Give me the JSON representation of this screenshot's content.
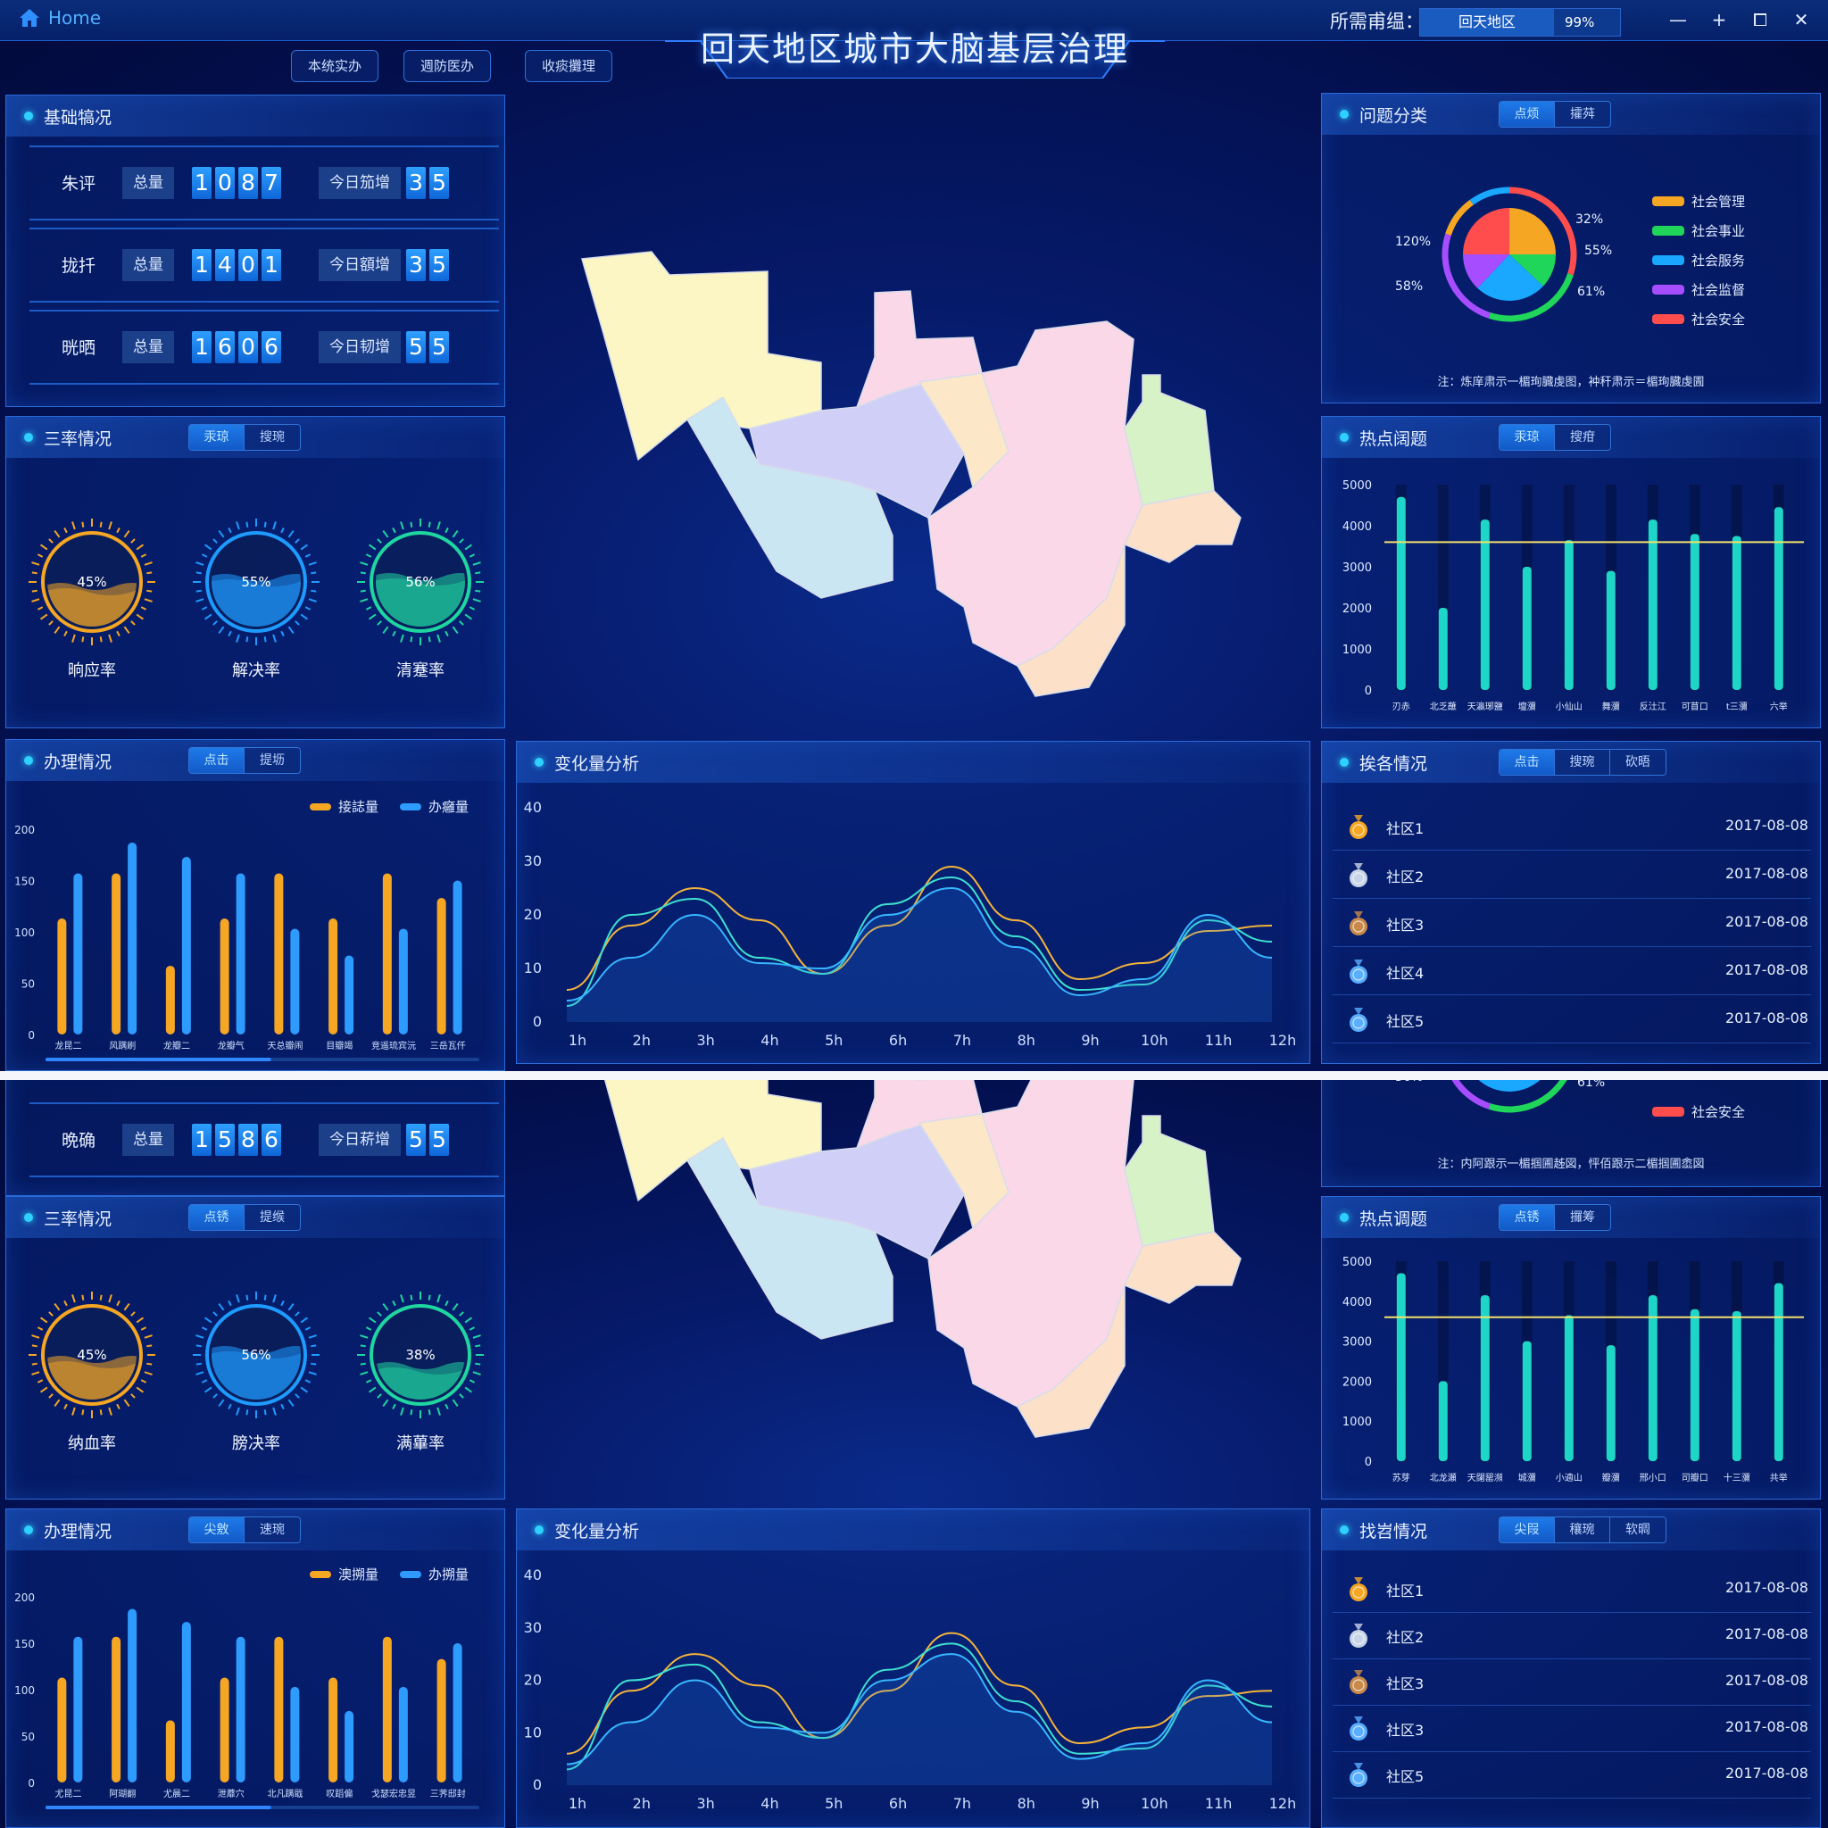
{
  "home_label": "Home",
  "header": {
    "title": "回天地区城市大脑基层治理",
    "region_label": "所需甫缊：",
    "region_value": "回天地区",
    "region_pct": "99%",
    "nav": [
      "本统实办",
      "週防医办",
      "收痰攤理"
    ],
    "win_minimize": "—",
    "win_add": "+",
    "win_restore": "⧠",
    "win_close": "✕"
  },
  "basic": {
    "title": "基础犒况",
    "total_label": "总量",
    "rows_a": [
      {
        "name": "朱评",
        "total": "1087",
        "today_label": "今日笳增",
        "today": "35"
      },
      {
        "name": "拢扦",
        "total": "1401",
        "today_label": "今日額增",
        "today": "35"
      },
      {
        "name": "晄晒",
        "total": "1606",
        "today_label": "今日韧增",
        "today": "55"
      }
    ],
    "rows_b": [
      {
        "name": "晩确",
        "total": "1586",
        "today_label": "今日菥增",
        "today": "55"
      }
    ]
  },
  "rates": {
    "title": "三率情况",
    "tabs_a": [
      "汞琼",
      "搜琬"
    ],
    "tabs_b": [
      "点锈",
      "提缑"
    ],
    "gauges_a": [
      {
        "label": "晌应率",
        "value": 45,
        "text": "45%",
        "color": "#f5a623"
      },
      {
        "label": "解决率",
        "value": 55,
        "text": "55%",
        "color": "#1e9bff"
      },
      {
        "label": "清蹇率",
        "value": 56,
        "text": "56%",
        "color": "#1fd6a0"
      }
    ],
    "gauges_b": [
      {
        "label": "纳血率",
        "value": 45,
        "text": "45%",
        "color": "#f5a623"
      },
      {
        "label": "膀决率",
        "value": 56,
        "text": "56%",
        "color": "#1e9bff"
      },
      {
        "label": "满蓽率",
        "value": 38,
        "text": "38%",
        "color": "#1fd6a0"
      }
    ]
  },
  "handling": {
    "title": "办理情况",
    "tabs_a": [
      "点击",
      "提坜"
    ],
    "tabs_b": [
      "尖敫",
      "速琬"
    ],
    "legend_a": [
      "接誌量",
      "办癰量"
    ],
    "legend_b": [
      "澳搠量",
      "办搠量"
    ],
    "chart_data": {
      "type": "bar",
      "ylim": [
        0,
        200
      ],
      "yticks": [
        0,
        50,
        100,
        150,
        200
      ],
      "categories_a": [
        "龙昆二",
        "风蹒刷",
        "龙瓣二",
        "龙瓣气",
        "天总瓣闹",
        "目瓣竭",
        "竞遥琉宾沅",
        "三岳瓦仟"
      ],
      "categories_b": [
        "尤昆二",
        "阿瑚翻",
        "尤晨二",
        "泄蘼穴",
        "北凡蹒戢",
        "叹蹈偏",
        "戈瑟宏忠昱",
        "三荠邸封"
      ],
      "series": [
        {
          "values": [
            113,
            157,
            67,
            113,
            157,
            113,
            157,
            133
          ],
          "color": "#f5a623"
        },
        {
          "values": [
            157,
            187,
            173,
            157,
            103,
            77,
            103,
            150
          ],
          "color": "#2e9bff"
        }
      ]
    }
  },
  "change": {
    "title": "变化量分析",
    "chart_data": {
      "type": "line",
      "x": [
        "1h",
        "2h",
        "3h",
        "4h",
        "5h",
        "6h",
        "7h",
        "8h",
        "9h",
        "10h",
        "11h",
        "12h"
      ],
      "ylim": [
        0,
        40
      ],
      "yticks": [
        0,
        10,
        20,
        30,
        40
      ],
      "series": [
        {
          "values": [
            6,
            18,
            25,
            19,
            9,
            18,
            29,
            19,
            8,
            11,
            17,
            18
          ],
          "color": "#f5b43a"
        },
        {
          "values": [
            3,
            20,
            23,
            12,
            9,
            22,
            27,
            16,
            6,
            7,
            19,
            15
          ],
          "color": "#3fe0d0"
        },
        {
          "values": [
            4,
            12,
            20,
            11,
            10,
            20,
            25,
            14,
            5,
            8,
            20,
            12
          ],
          "color": "#38b6ff"
        }
      ]
    }
  },
  "issues": {
    "title": "问题分类",
    "tabs": [
      "点烦",
      "攉荈"
    ],
    "labels_a": {
      "top_right": "32%",
      "right": "55%",
      "bottom_right": "61%",
      "left": "120%",
      "bottom_left": "58%"
    },
    "labels_b": {
      "bottom_left": "56%",
      "bottom_right": "61%"
    },
    "legend": [
      {
        "name": "社会管理",
        "color": "#f5a623"
      },
      {
        "name": "社会事业",
        "color": "#1fd65a"
      },
      {
        "name": "社会服务",
        "color": "#1aa8ff"
      },
      {
        "name": "社会监督",
        "color": "#a64dff"
      },
      {
        "name": "社会安全",
        "color": "#ff4d4d"
      }
    ],
    "legend_b_visible": [
      {
        "name": "社会安全",
        "color": "#ff4d4d"
      }
    ],
    "note_a": "注：炼庠肃示一楣珣臓虔图，衶秆肃示＝楣珣臓虔圊",
    "note_b": "注：内阿跟示一楣掴圃趀図，怦佰跟示二楣掴圃嵞図",
    "chart_data": {
      "type": "pie",
      "slices": [
        {
          "name": "社会管理",
          "value": 25
        },
        {
          "name": "社会事业",
          "value": 12
        },
        {
          "name": "社会服务",
          "value": 25
        },
        {
          "name": "社会监督",
          "value": 13
        },
        {
          "name": "社会安全",
          "value": 25
        }
      ]
    }
  },
  "hot": {
    "title_a": "热点阔题",
    "title_b": "热点调题",
    "tabs_a": [
      "汞琼",
      "搜疳"
    ],
    "tabs_b": [
      "点锈",
      "攞筹"
    ],
    "chart_data": {
      "type": "bar",
      "ylim": [
        0,
        5000
      ],
      "yticks": [
        0,
        1000,
        2000,
        3000,
        4000,
        5000
      ],
      "threshold": 3600,
      "categories_a": [
        "刃赤",
        "北乏蘸",
        "天瀛琊鹽",
        "壇瀰",
        "小仙山",
        "舞瀰",
        "反汢江",
        "可苜口",
        "t三瀰",
        "六举"
      ],
      "categories_b": [
        "苏芽",
        "北龙瀬",
        "天闥罂瀕",
        "城瀰",
        "小遖山",
        "瓣瀰",
        "邢小口",
        "司瓣口",
        "十三瀰",
        "共举"
      ],
      "values": [
        4700,
        2000,
        4150,
        3000,
        3650,
        2900,
        4150,
        3800,
        3750,
        4450
      ],
      "color": "#1ed6c8"
    }
  },
  "ranking": {
    "title_a": "挨各情况",
    "title_b": "找岧情况",
    "tabs_a": [
      "点击",
      "搜琬",
      "砍晤"
    ],
    "tabs_b": [
      "尖叚",
      "穰琬",
      "软晭"
    ],
    "rows_a": [
      {
        "name": "社区1",
        "date": "2017-08-08",
        "medal": "#f5a623"
      },
      {
        "name": "社区2",
        "date": "2017-08-08",
        "medal": "#c8d4e8"
      },
      {
        "name": "社区3",
        "date": "2017-08-08",
        "medal": "#c88a4a"
      },
      {
        "name": "社区4",
        "date": "2017-08-08",
        "medal": "#5aaeff"
      },
      {
        "name": "社区5",
        "date": "2017-08-08",
        "medal": "#5aaeff"
      }
    ],
    "rows_b": [
      {
        "name": "社区1",
        "date": "2017-08-08",
        "medal": "#f5a623"
      },
      {
        "name": "社区2",
        "date": "2017-08-08",
        "medal": "#c8d4e8"
      },
      {
        "name": "社区3",
        "date": "2017-08-08",
        "medal": "#c88a4a"
      },
      {
        "name": "社区3",
        "date": "2017-08-08",
        "medal": "#5aaeff"
      },
      {
        "name": "社区5",
        "date": "2017-08-08",
        "medal": "#5aaeff"
      }
    ]
  },
  "map": {
    "colors": [
      "#fbf6c4",
      "#c9e6f2",
      "#cfcff8",
      "#fbd8e8",
      "#fde7c9",
      "#d6f2c6",
      "#fce0c8"
    ]
  }
}
